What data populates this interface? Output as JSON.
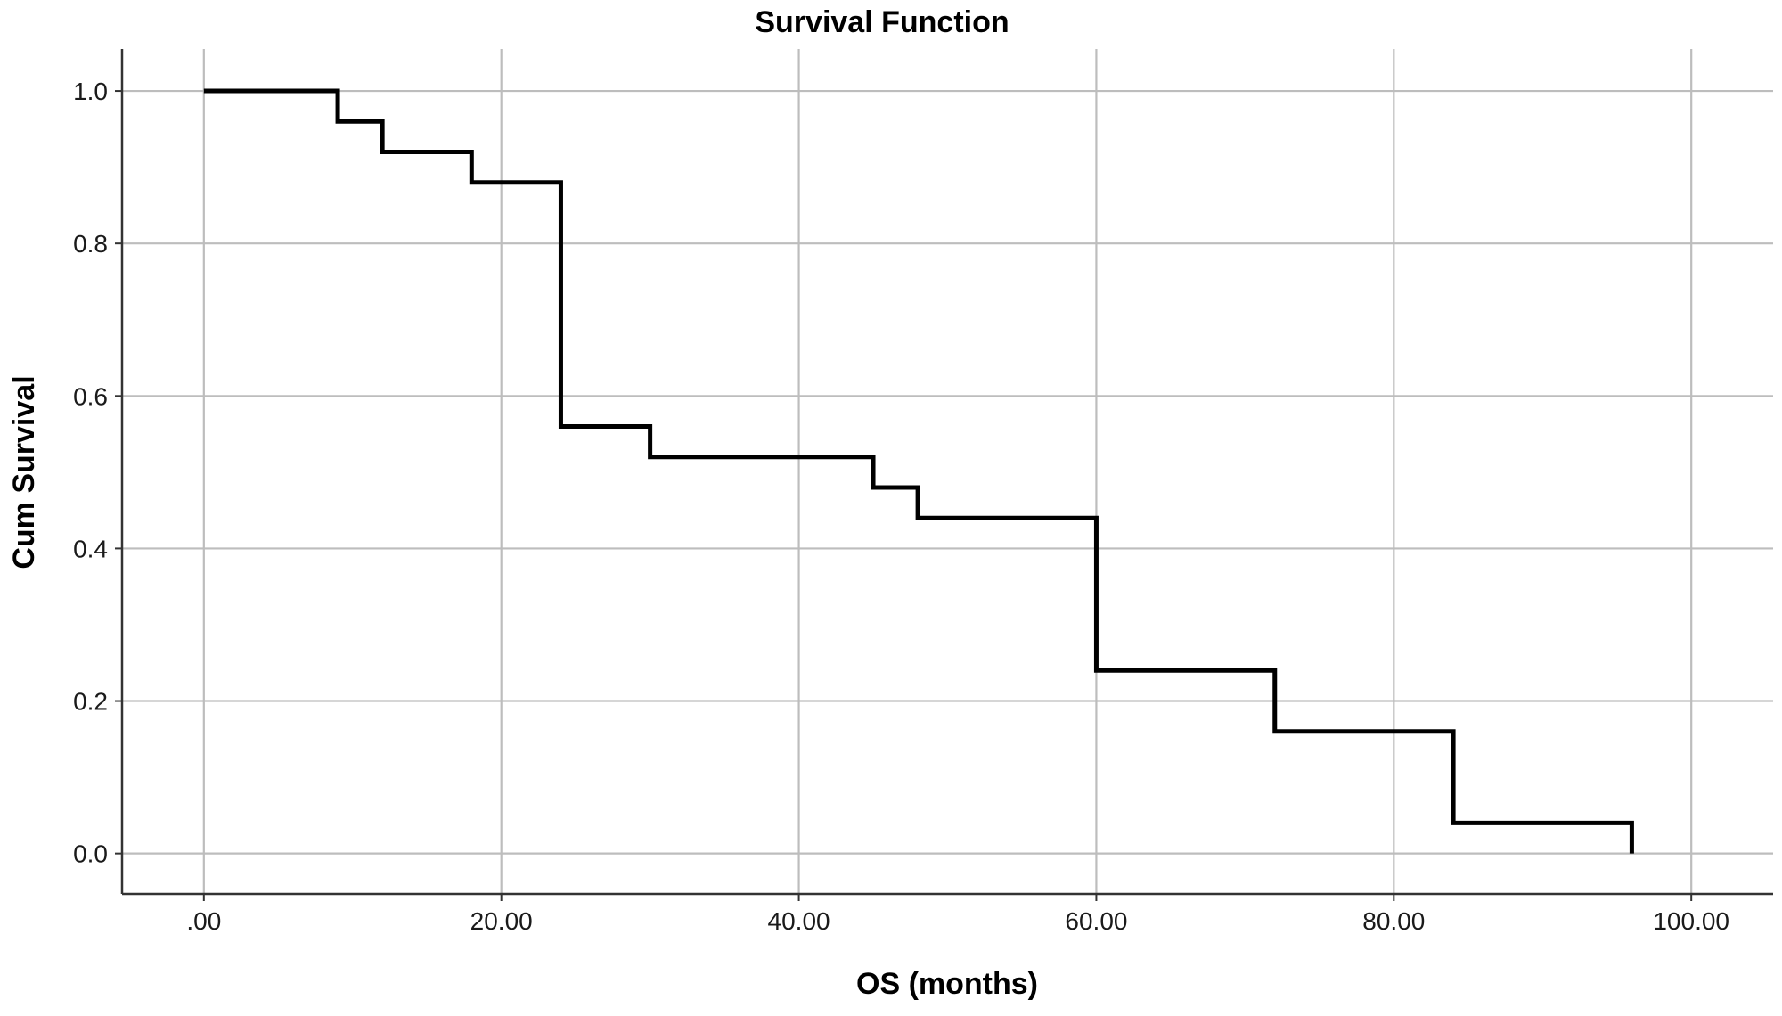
{
  "chart_data": {
    "type": "line",
    "title": "Survival Function",
    "xlabel": "OS (months)",
    "ylabel": "Cum Survival",
    "xlim": [
      -5.5,
      105.5
    ],
    "ylim": [
      -0.053,
      1.055
    ],
    "x_ticks": [
      0,
      20,
      40,
      60,
      80,
      100
    ],
    "x_tick_labels": [
      ".00",
      "20.00",
      "40.00",
      "60.00",
      "80.00",
      "100.00"
    ],
    "y_ticks": [
      0.0,
      0.2,
      0.4,
      0.6,
      0.8,
      1.0
    ],
    "y_tick_labels": [
      "0.0",
      "0.2",
      "0.4",
      "0.6",
      "0.8",
      "1.0"
    ],
    "grid": true,
    "line_style": "step",
    "series": [
      {
        "color": "#000000",
        "x": [
          0,
          9,
          12,
          18,
          24,
          30,
          45,
          48,
          60,
          72,
          84,
          96
        ],
        "y": [
          1.0,
          0.96,
          0.92,
          0.88,
          0.56,
          0.52,
          0.48,
          0.44,
          0.24,
          0.16,
          0.04,
          0.0
        ]
      }
    ]
  }
}
